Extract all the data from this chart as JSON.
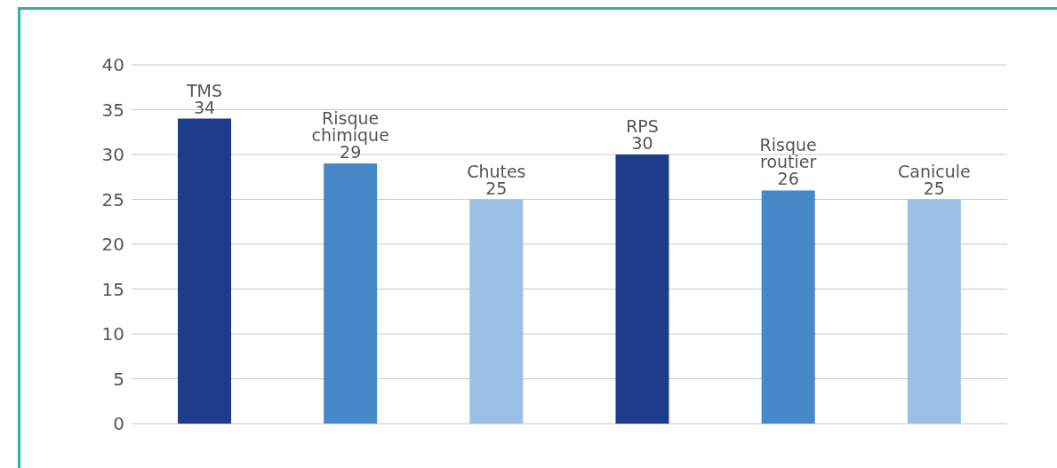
{
  "chart_data": {
    "type": "bar",
    "categories": [
      "TMS",
      "Risque chimique",
      "Chutes",
      "RPS",
      "Risque routier",
      "Canicule"
    ],
    "values": [
      34,
      29,
      25,
      30,
      26,
      25
    ],
    "colors": [
      "#1e3c8c",
      "#4789c8",
      "#9bc0e6",
      "#1e3c8c",
      "#4789c8",
      "#9bc0e6"
    ],
    "ylim": [
      0,
      40
    ],
    "yticks": [
      0,
      5,
      10,
      15,
      20,
      25,
      30,
      35,
      40
    ],
    "grid": "y",
    "data_labels": true,
    "tick_labels": "y"
  }
}
